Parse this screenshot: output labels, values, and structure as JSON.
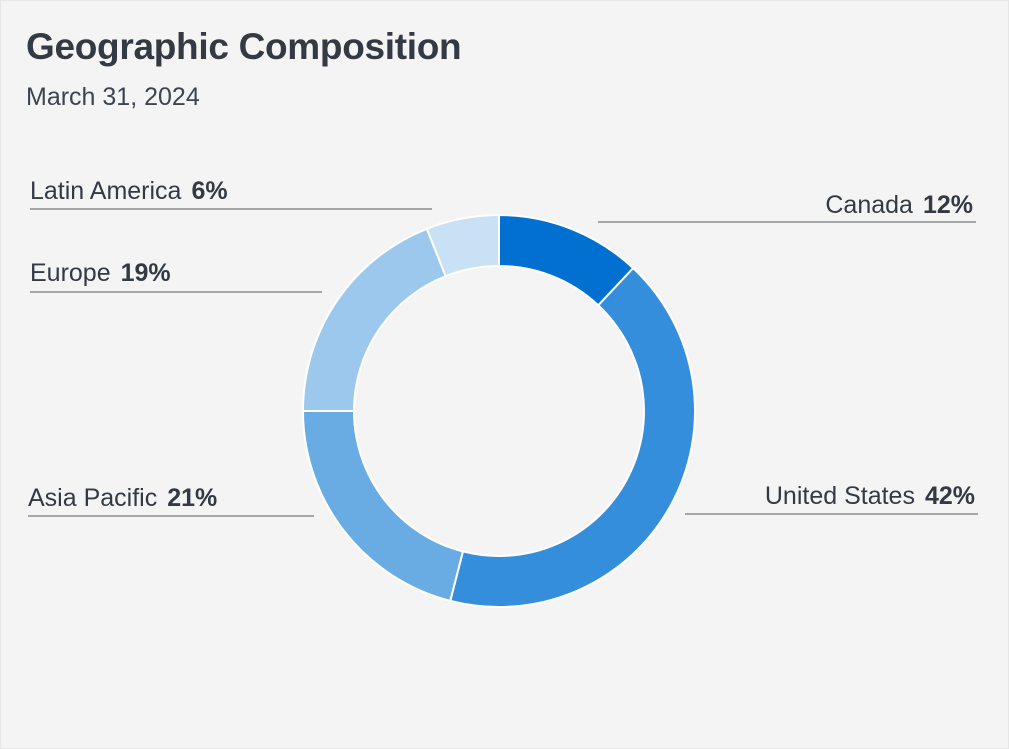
{
  "header": {
    "title": "Geographic Composition",
    "subtitle": "March 31, 2024"
  },
  "chart_data": {
    "type": "pie",
    "style": "donut",
    "legend": "none",
    "slices": [
      {
        "label": "Canada",
        "value": 12,
        "value_label": "12%",
        "color": "#0270d0"
      },
      {
        "label": "United States",
        "value": 42,
        "value_label": "42%",
        "color": "#358edc"
      },
      {
        "label": "Asia Pacific",
        "value": 21,
        "value_label": "21%",
        "color": "#69abe3"
      },
      {
        "label": "Europe",
        "value": 19,
        "value_label": "19%",
        "color": "#9bc8ec"
      },
      {
        "label": "Latin America",
        "value": 6,
        "value_label": "6%",
        "color": "#c9e1f5"
      }
    ]
  }
}
